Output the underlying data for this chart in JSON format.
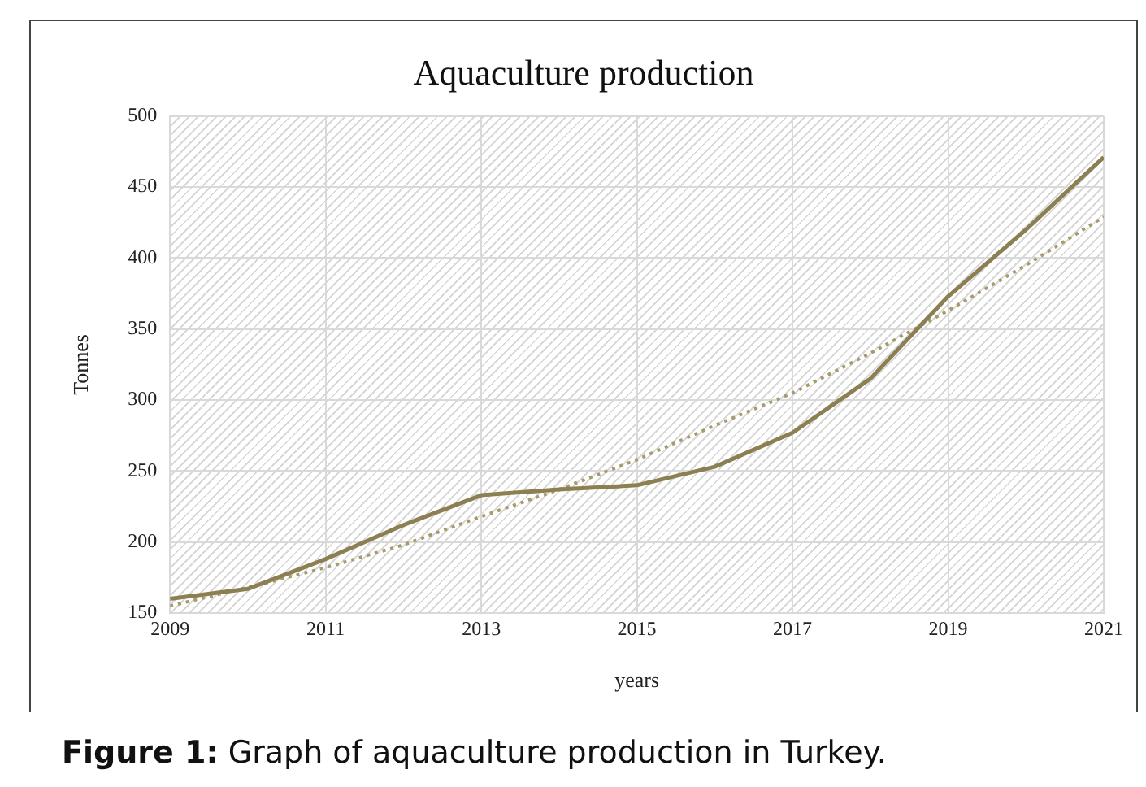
{
  "chart_data": {
    "type": "line",
    "title": "Aquaculture production",
    "xlabel": "years",
    "ylabel": "Tonnes",
    "annotations": [
      "Figure 1: Graph of aquaculture production in Turkey."
    ],
    "x": [
      2009,
      2010,
      2011,
      2012,
      2013,
      2014,
      2015,
      2016,
      2017,
      2018,
      2019,
      2020,
      2021
    ],
    "series": [
      {
        "color": "#8c7f52",
        "values": [
          160,
          167,
          188,
          212,
          233,
          237,
          240,
          253,
          277,
          315,
          373,
          420,
          471
        ]
      },
      {
        "type": "line",
        "color": "#a89b6a",
        "line_style": "dotted",
        "values": [
          155,
          168,
          182,
          198,
          218,
          237,
          258,
          282,
          305,
          333,
          363,
          395,
          429
        ]
      }
    ],
    "xlim": [
      2009,
      2021
    ],
    "xticks": [
      2009,
      2011,
      2013,
      2015,
      2017,
      2019,
      2021
    ],
    "ylim": [
      150,
      500
    ],
    "yticks": [
      150,
      200,
      250,
      300,
      350,
      400,
      450,
      500
    ],
    "grid": true,
    "legend": false,
    "marker": "none",
    "line_style": "solid"
  }
}
